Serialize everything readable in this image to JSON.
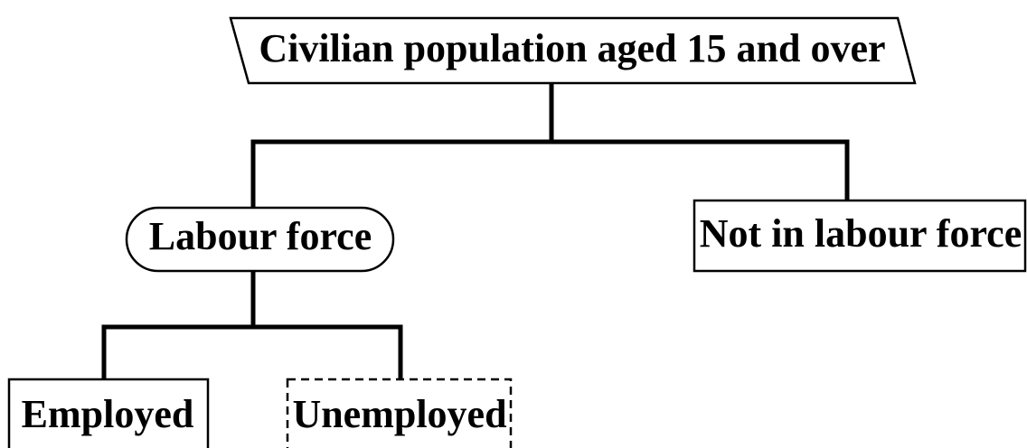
{
  "nodes": [
    {
      "label": "Civilian population aged 15 and over"
    },
    {
      "label": "Labour force"
    },
    {
      "label": "Not in labour force"
    },
    {
      "label": "Employed"
    },
    {
      "label": "Unemployed"
    }
  ]
}
